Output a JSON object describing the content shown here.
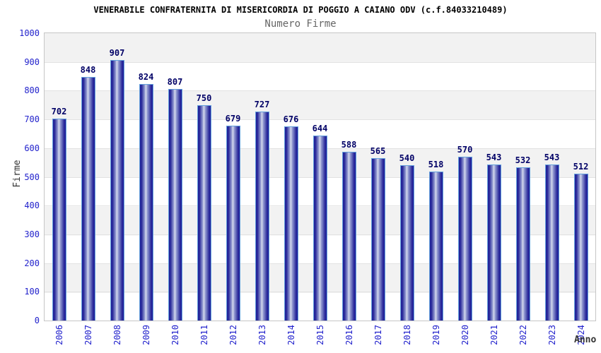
{
  "chart": {
    "title": "VENERABILE CONFRATERNITA DI MISERICORDIA DI POGGIO A CAIANO ODV (c.f.84033210489)",
    "subtitle": "Numero Firme",
    "ylabel": "Firme",
    "xlabel": "Anno"
  },
  "chart_data": {
    "type": "bar",
    "title": "Numero Firme",
    "xlabel": "Anno",
    "ylabel": "Firme",
    "categories": [
      "2006",
      "2007",
      "2008",
      "2009",
      "2010",
      "2011",
      "2012",
      "2013",
      "2014",
      "2015",
      "2016",
      "2017",
      "2018",
      "2019",
      "2020",
      "2021",
      "2022",
      "2023",
      "2024"
    ],
    "values": [
      702,
      848,
      907,
      824,
      807,
      750,
      679,
      727,
      676,
      644,
      588,
      565,
      540,
      518,
      570,
      543,
      532,
      543,
      512
    ],
    "ylim": [
      0,
      1000
    ],
    "ytick_step": 100,
    "grid": true,
    "legend": "none",
    "band_stripes": true
  },
  "colors": {
    "tick_label": "#2222cc",
    "value_label": "#000066",
    "bar_dark": "#22229a",
    "bar_light": "#d6dbee",
    "bar_border": "#64a0dc",
    "band_gray": "#f2f2f2",
    "band_white": "#ffffff",
    "gridline": "#e2e2e2",
    "plot_border": "#c6c6c6",
    "title_color": "#000000",
    "subtitle_color": "#666666",
    "axis_label_color": "#333333"
  }
}
